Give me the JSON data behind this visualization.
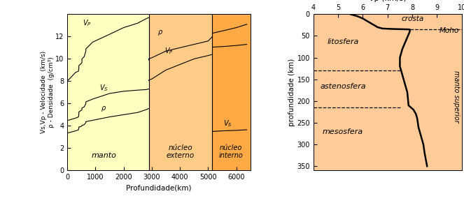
{
  "manto_color": "#ffffc0",
  "nucleo_ext_color": "#ffcc88",
  "nucleo_int_color": "#ffaa44",
  "right_bg": "#ffcc99",
  "xlabel_left": "Profundidade(km)",
  "ylabel_left": "Vs,Vp - Velocidade  (km/s)\nρ - Densidade  (g/cm³)",
  "xlabel_right": "Vp (km/s)",
  "ylabel_right": "profundidade (km)",
  "xlim_left": [
    0,
    6500
  ],
  "ylim_left": [
    0,
    14
  ],
  "xlim_right": [
    4,
    10
  ],
  "ylim_right": [
    0,
    360
  ],
  "x_ticks_left": [
    0,
    1000,
    2000,
    3000,
    4000,
    5000,
    6000
  ],
  "y_ticks_left": [
    0,
    2,
    4,
    6,
    8,
    10,
    12
  ],
  "x_ticks_right": [
    4,
    5,
    6,
    7,
    8,
    9,
    10
  ],
  "y_ticks_right": [
    0,
    50,
    100,
    150,
    200,
    250,
    300,
    350
  ],
  "mantle_boundary": 2900,
  "outer_core_boundary": 5150,
  "moho_depth": 35,
  "litho_base": 130,
  "asteno_base": 215
}
